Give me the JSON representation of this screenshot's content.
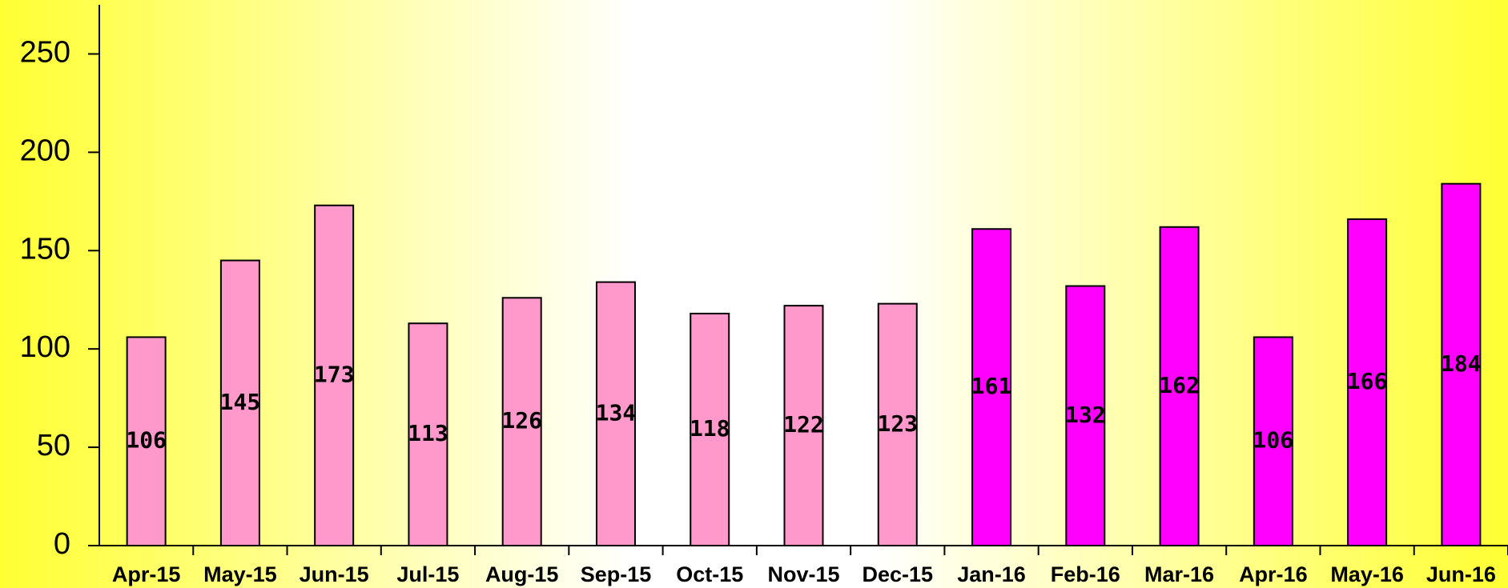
{
  "chart_data": {
    "type": "bar",
    "categories": [
      "Apr-15",
      "May-15",
      "Jun-15",
      "Jul-15",
      "Aug-15",
      "Sep-15",
      "Oct-15",
      "Nov-15",
      "Dec-15",
      "Jan-16",
      "Feb-16",
      "Mar-16",
      "Apr-16",
      "May-16",
      "Jun-16"
    ],
    "values": [
      106,
      145,
      173,
      113,
      126,
      134,
      118,
      122,
      123,
      161,
      132,
      162,
      106,
      166,
      184
    ],
    "colors": [
      "#ff99cc",
      "#ff99cc",
      "#ff99cc",
      "#ff99cc",
      "#ff99cc",
      "#ff99cc",
      "#ff99cc",
      "#ff99cc",
      "#ff99cc",
      "#ff00ff",
      "#ff00ff",
      "#ff00ff",
      "#ff00ff",
      "#ff00ff",
      "#ff00ff"
    ],
    "ylim": [
      0,
      275
    ],
    "yticks": [
      0,
      50,
      100,
      150,
      200,
      250
    ],
    "grid": false
  }
}
